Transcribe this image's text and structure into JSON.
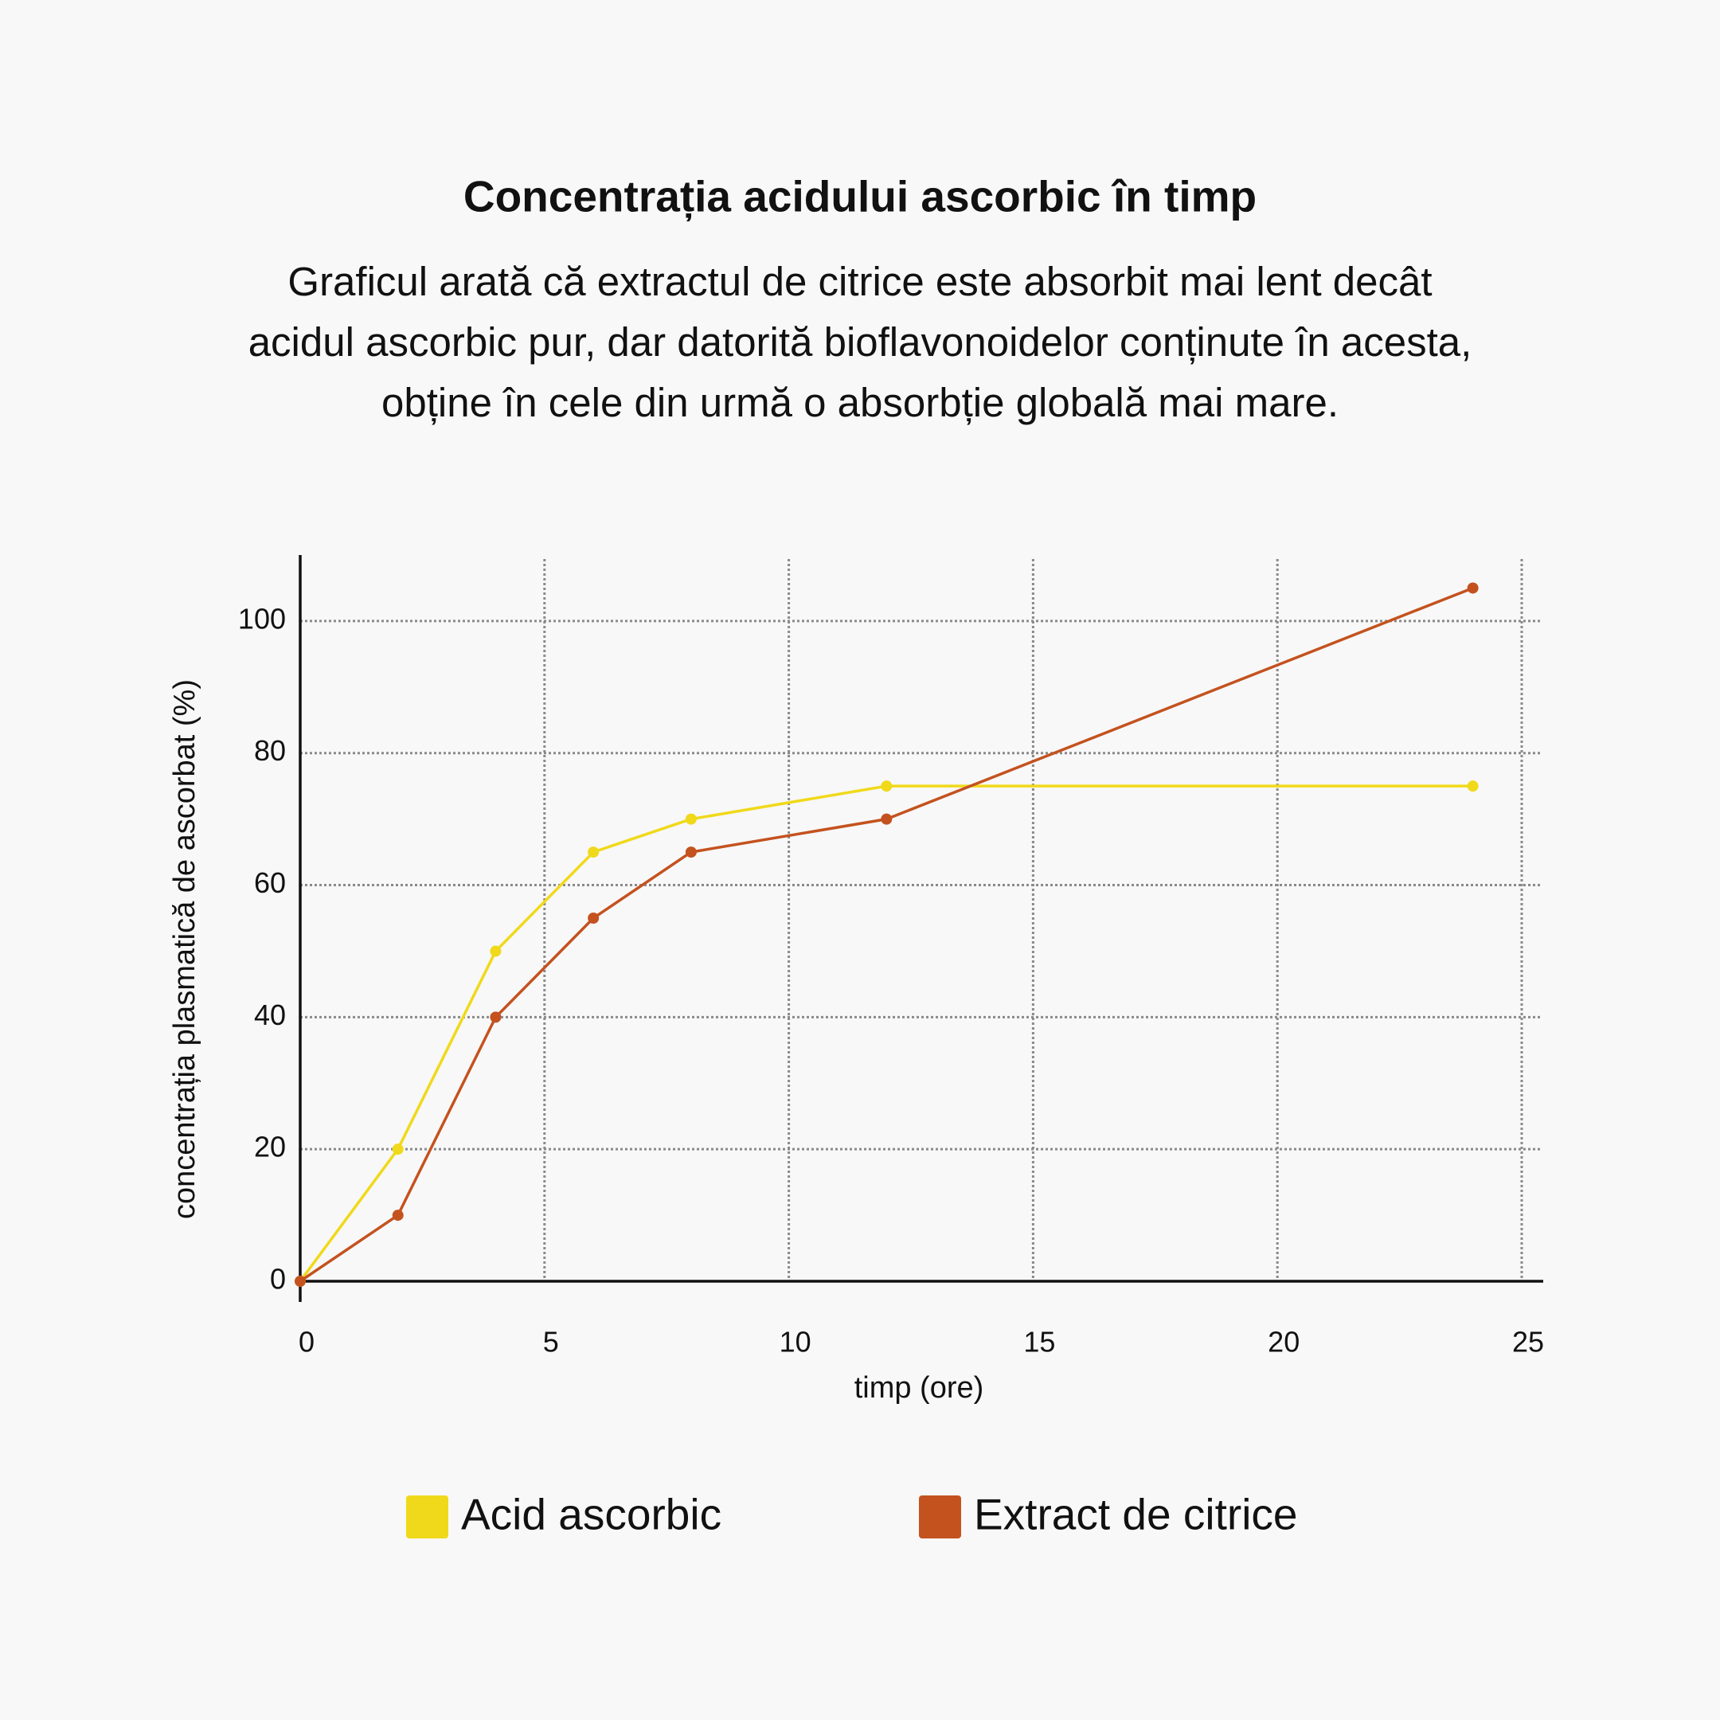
{
  "chart_data": {
    "type": "line",
    "title": "Concentrația acidului ascorbic în timp",
    "subtitle": "Graficul arată că extractul de citrice este absorbit mai lent decât acidul ascorbic pur, dar datorită bioflavonoidelor conținute în acesta, obține în cele din urmă o absorbție globală mai mare.",
    "x_label": "timp (ore)",
    "y_label": "concentrația plasmatică de ascorbat (%)",
    "x": [
      0,
      2,
      4,
      6,
      8,
      12,
      24
    ],
    "series": [
      {
        "name": "Acid ascorbic",
        "color": "#f0d91a",
        "values": [
          0,
          20,
          50,
          65,
          70,
          75,
          75
        ]
      },
      {
        "name": "Extract de citrice",
        "color": "#c4521f",
        "values": [
          0,
          10,
          40,
          55,
          65,
          70,
          105
        ]
      }
    ],
    "xlim": [
      0,
      25
    ],
    "ylim": [
      0,
      110
    ],
    "xticks": [
      0,
      5,
      10,
      15,
      20,
      25
    ],
    "yticks": [
      0,
      20,
      40,
      60,
      80,
      100
    ],
    "grid": true,
    "legend": "bottom"
  }
}
